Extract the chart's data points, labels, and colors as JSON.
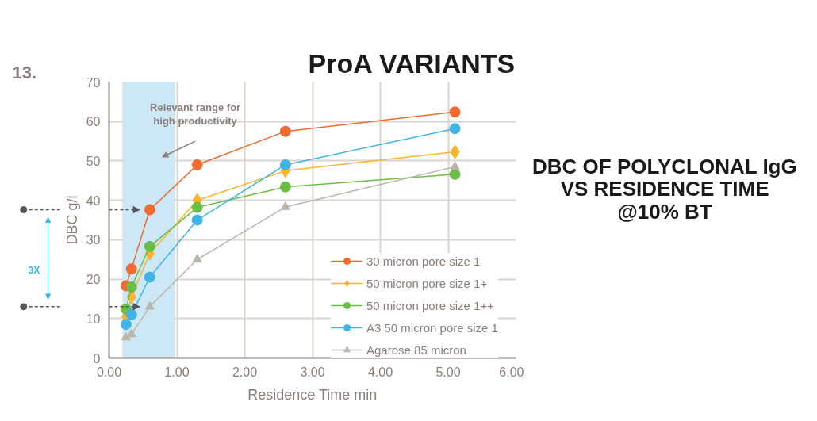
{
  "chart_data": {
    "type": "line",
    "title": "ProA VARIANTS",
    "subtitle": "DBC OF POLYCLONAL IgG\nVS RESIDENCE TIME\n@10% BT",
    "xlabel": "Residence Time min",
    "ylabel": "DBC g/l",
    "x": [
      0.25,
      0.33,
      0.6,
      1.3,
      2.6,
      5.1
    ],
    "series": [
      {
        "name": "30 micron pore size 1",
        "color": "#f26a2e",
        "marker": "circle",
        "values": [
          18.3,
          22.6,
          37.6,
          49.0,
          57.5,
          62.4
        ]
      },
      {
        "name": "50 micron pore size 1+",
        "color": "#fbb42c",
        "marker": "diamond",
        "values": [
          10.5,
          15.5,
          26.5,
          40.0,
          47.5,
          52.3
        ]
      },
      {
        "name": "50 micron pore size 1++",
        "color": "#6abd45",
        "marker": "circle",
        "values": [
          12.4,
          18.0,
          28.3,
          38.2,
          43.4,
          46.6
        ]
      },
      {
        "name": "A3 50 micron pore size 1",
        "color": "#3fb5e5",
        "marker": "circle",
        "values": [
          8.5,
          11.0,
          20.5,
          35.0,
          49.0,
          58.2
        ]
      },
      {
        "name": "Agarose 85 micron",
        "color": "#b9b5aa",
        "marker": "triangle",
        "values": [
          5.2,
          6.0,
          13.0,
          25.0,
          38.3,
          48.5
        ]
      }
    ],
    "xlim": [
      0,
      6
    ],
    "ylim": [
      0,
      70
    ],
    "xticks": [
      {
        "value": 0,
        "label": "0.00"
      },
      {
        "value": 1,
        "label": "1.00"
      },
      {
        "value": 2,
        "label": "2.00"
      },
      {
        "value": 3,
        "label": "3.00"
      },
      {
        "value": 4,
        "label": "4.00"
      },
      {
        "value": 5,
        "label": "5.00"
      },
      {
        "value": 6,
        "label": "6.00"
      }
    ],
    "yticks": [
      0,
      10,
      20,
      30,
      40,
      50,
      60,
      70
    ],
    "bands": [
      {
        "axis": "x",
        "from": 0.2,
        "to": 0.97,
        "label": "Relevant range for\nhigh productivity",
        "color": "#cce8f6"
      }
    ],
    "annotations": [
      "13.",
      "3X"
    ],
    "grid": true,
    "legend": "right",
    "line_style": "solid"
  }
}
